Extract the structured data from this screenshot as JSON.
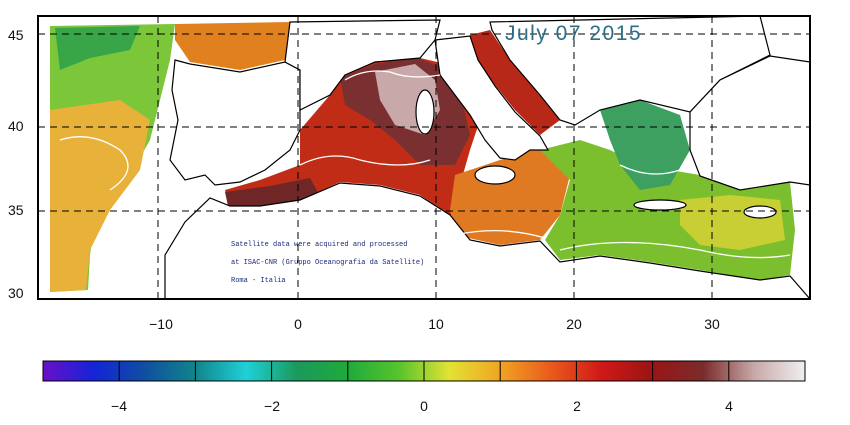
{
  "map": {
    "date_label": "July 07 2015",
    "lat_ticks": [
      "45",
      "40",
      "35",
      "30"
    ],
    "lon_ticks": [
      "−10",
      "0",
      "10",
      "20",
      "30"
    ],
    "credit_lines": [
      "Satellite data were acquired and processed",
      "at ISAC-CNR (Gruppo Oceanografia da Satellite)",
      "Roma - Italia"
    ]
  },
  "colorbar": {
    "tick_labels": [
      "−4",
      "−2",
      "0",
      "2",
      "4"
    ],
    "range": [
      -5,
      5
    ],
    "colors": [
      "#6a0fc8",
      "#1424d8",
      "#0f4fa0",
      "#10858a",
      "#1fd0d8",
      "#1a9a5c",
      "#1faa3c",
      "#56c42c",
      "#e2e234",
      "#f0a424",
      "#ea5a1c",
      "#d01818",
      "#9a1414",
      "#7a2c2c",
      "#c8a8a8",
      "#f0f0f0"
    ]
  },
  "colors": {
    "land": "#ffffff",
    "coast": "#000000",
    "grid": "#000000",
    "contour": "#ffffff",
    "date_text": "#2d6e86"
  }
}
